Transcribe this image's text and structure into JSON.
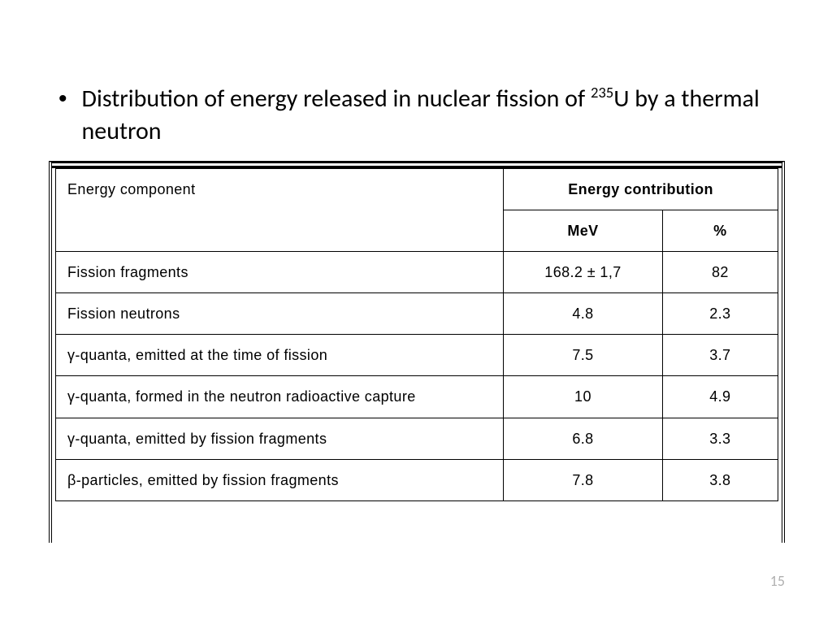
{
  "slide": {
    "bullet_prefix": "Distribution of energy released in nuclear fission of ",
    "bullet_sup": "235",
    "bullet_suffix": "U by a thermal neutron",
    "page_number": "15"
  },
  "table": {
    "header_component": "Energy component",
    "header_contribution": "Energy contribution",
    "header_mev": "MeV",
    "header_pct": "%",
    "column_widths_pct": [
      62,
      22,
      16
    ],
    "font_family": "Verdana",
    "font_size_pt": 18,
    "border_color": "#000000",
    "rows": [
      {
        "label": "Fission fragments",
        "mev": "168.2 ± 1,7",
        "pct": "82"
      },
      {
        "label": "Fission neutrons",
        "mev": "4.8",
        "pct": "2.3"
      },
      {
        "label": "γ-quanta, emitted at the time of fission",
        "mev": "7.5",
        "pct": "3.7"
      },
      {
        "label": "γ-quanta, formed in the neutron radioactive capture",
        "mev": "10",
        "pct": "4.9"
      },
      {
        "label": "γ-quanta, emitted by fission fragments",
        "mev": "6.8",
        "pct": "3.3"
      },
      {
        "label": "β-particles, emitted by fission fragments",
        "mev": "7.8",
        "pct": "3.8"
      }
    ]
  },
  "style": {
    "background": "#ffffff",
    "text_color": "#000000",
    "page_number_color": "#b0b0b0",
    "bullet_fontsize": 30
  }
}
